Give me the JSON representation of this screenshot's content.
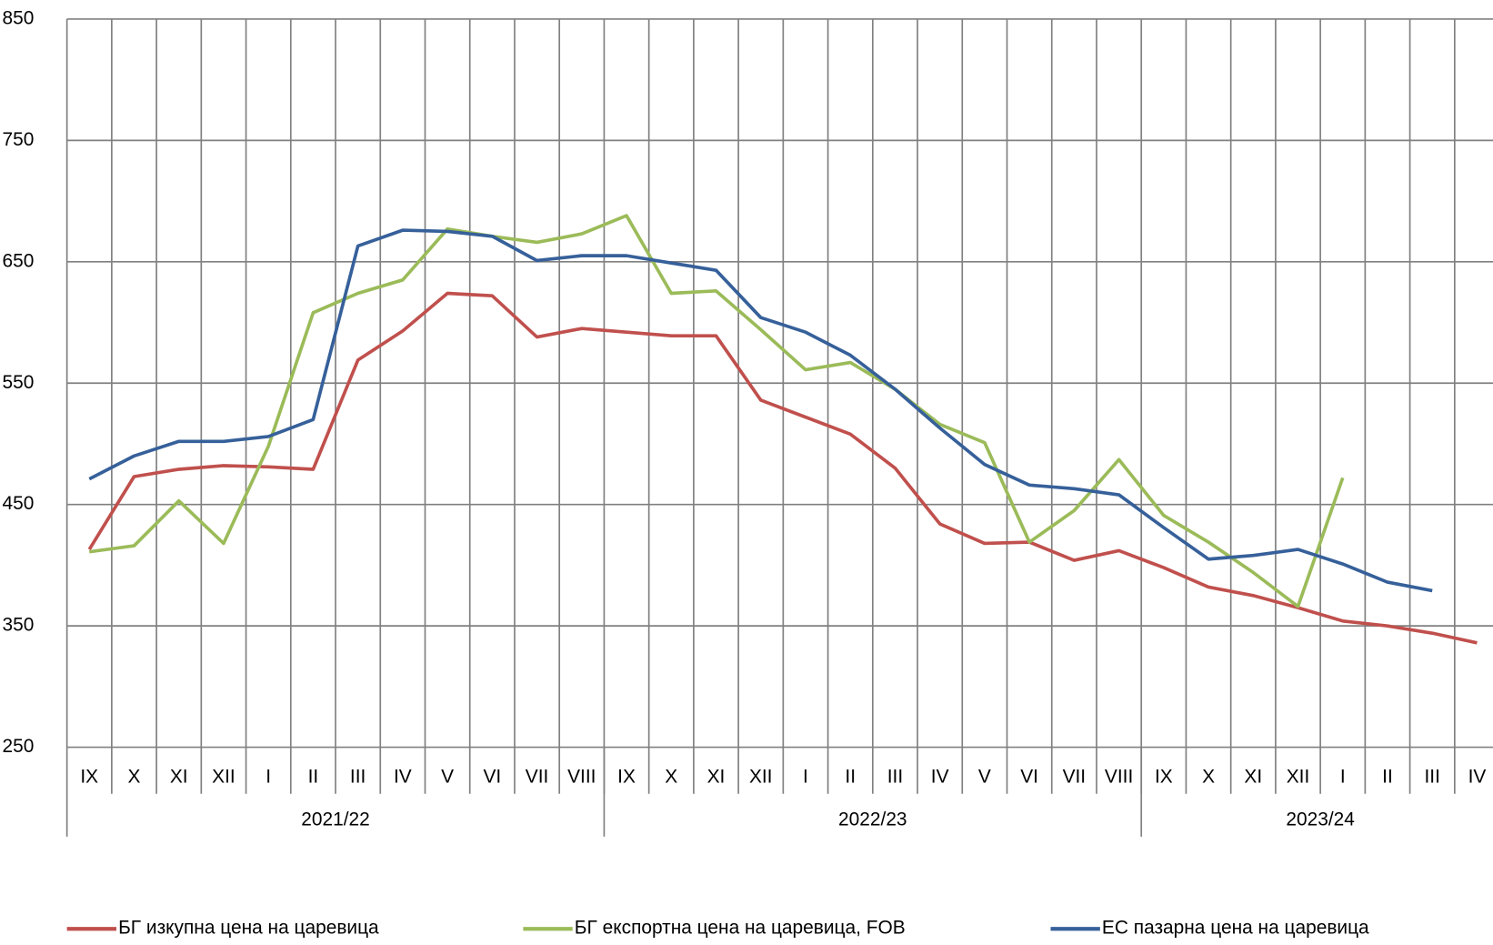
{
  "chart_data": {
    "type": "line",
    "categories": [
      "IX",
      "X",
      "XI",
      "XII",
      "I",
      "II",
      "III",
      "IV",
      "V",
      "VI",
      "VII",
      "VIII",
      "IX",
      "X",
      "XI",
      "XII",
      "I",
      "II",
      "III",
      "IV",
      "V",
      "VI",
      "VII",
      "VIII",
      "IX",
      "X",
      "XI",
      "XII",
      "I",
      "II",
      "III",
      "IV"
    ],
    "groups": [
      {
        "label": "2021/22",
        "span": 12
      },
      {
        "label": "2022/23",
        "span": 12
      },
      {
        "label": "2023/24",
        "span": 8
      }
    ],
    "series": [
      {
        "name": "БГ изкупна цена на царевица",
        "color": "#c0504d",
        "values": [
          413,
          473,
          479,
          482,
          481,
          479,
          569,
          593,
          624,
          622,
          588,
          595,
          592,
          589,
          589,
          536,
          522,
          508,
          480,
          434,
          418,
          419,
          404,
          412,
          398,
          382,
          375,
          365,
          354,
          350,
          344,
          336
        ]
      },
      {
        "name": "БГ експортна цена на царевица, FOB",
        "color": "#9bbb59",
        "values": [
          411,
          416,
          453,
          418,
          498,
          608,
          624,
          635,
          677,
          671,
          666,
          673,
          688,
          624,
          626,
          594,
          561,
          567,
          545,
          516,
          501,
          419,
          445,
          487,
          441,
          419,
          394,
          366,
          472,
          null,
          null,
          null
        ]
      },
      {
        "name": "ЕС пазарна цена на царевица",
        "color": "#36609a",
        "values": [
          471,
          490,
          502,
          502,
          506,
          520,
          663,
          676,
          675,
          671,
          651,
          655,
          655,
          649,
          643,
          604,
          592,
          573,
          545,
          513,
          483,
          466,
          463,
          458,
          431,
          405,
          408,
          413,
          401,
          386,
          379,
          null
        ]
      }
    ],
    "ylim": [
      250,
      850
    ],
    "yticks": [
      250,
      350,
      450,
      550,
      650,
      750,
      850
    ],
    "grid": true,
    "legend": "bottom"
  }
}
